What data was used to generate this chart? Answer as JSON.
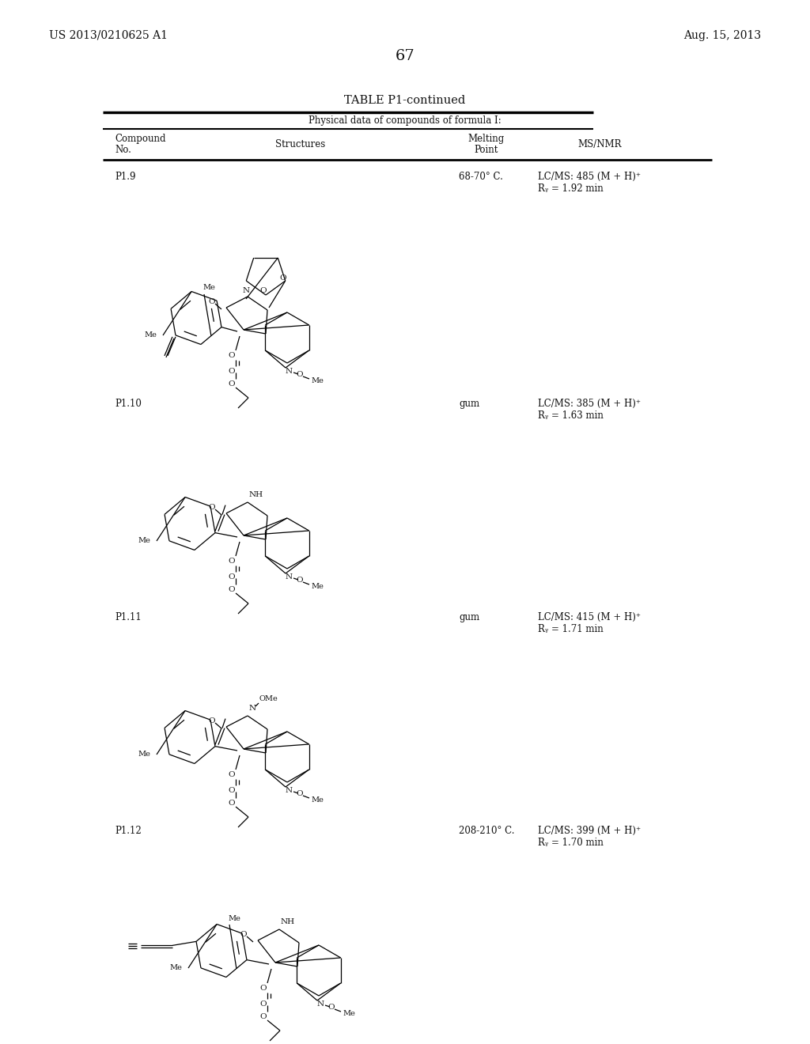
{
  "background_color": "#ffffff",
  "page_number": "67",
  "left_header": "US 2013/0210625 A1",
  "right_header": "Aug. 15, 2013",
  "table_title": "TABLE P1-continued",
  "table_subtitle": "Physical data of compounds of formula I:",
  "rows": [
    {
      "compound": "P1.9",
      "melting_point": "68-70° C.",
      "ms_nmr_line1": "LC/MS: 485 (M + H)⁺",
      "ms_nmr_line2": "Rᵧ = 1.92 min"
    },
    {
      "compound": "P1.10",
      "melting_point": "gum",
      "ms_nmr_line1": "LC/MS: 385 (M + H)⁺",
      "ms_nmr_line2": "Rᵧ = 1.63 min"
    },
    {
      "compound": "P1.11",
      "melting_point": "gum",
      "ms_nmr_line1": "LC/MS: 415 (M + H)⁺",
      "ms_nmr_line2": "Rᵧ = 1.71 min"
    },
    {
      "compound": "P1.12",
      "melting_point": "208-210° C.",
      "ms_nmr_line1": "LC/MS: 399 (M + H)⁺",
      "ms_nmr_line2": "Rᵧ = 1.70 min"
    }
  ]
}
